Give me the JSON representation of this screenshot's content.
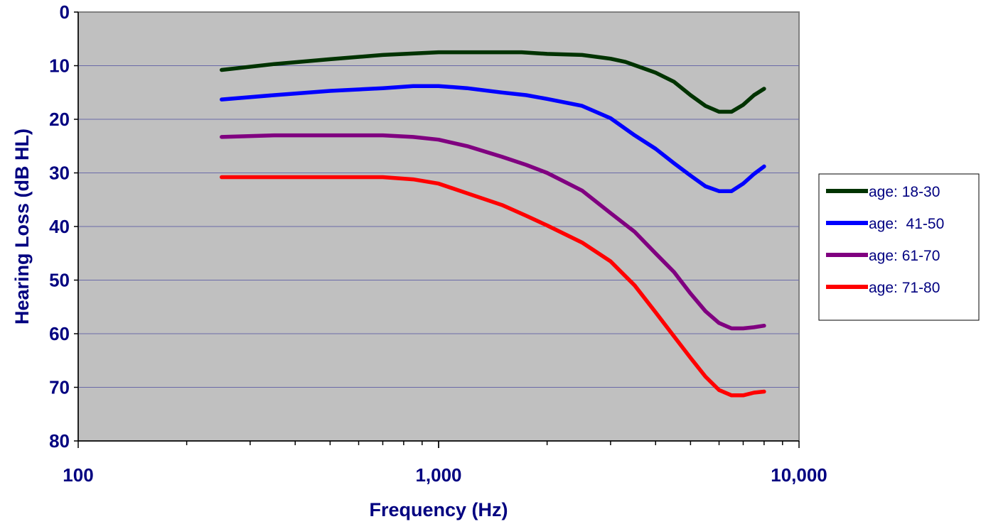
{
  "chart_data": {
    "type": "line",
    "title": "",
    "xlabel": "Frequency (Hz)",
    "ylabel": "Hearing Loss (dB HL)",
    "x_scale": "log",
    "xlim": [
      100,
      10000
    ],
    "ylim": [
      0,
      80
    ],
    "y_inverted": true,
    "y_ticks": [
      "0",
      "10",
      "20",
      "30",
      "40",
      "50",
      "60",
      "70",
      "80"
    ],
    "x_tick_labels": [
      "100",
      "1,000",
      "10,000"
    ],
    "grid": "horizontal",
    "legend_position": "right",
    "plot_background": "#C0C0C0",
    "series": [
      {
        "name": "age: 18-30",
        "color": "#003300",
        "points": [
          [
            250,
            10.8
          ],
          [
            350,
            9.7
          ],
          [
            500,
            8.8
          ],
          [
            700,
            8.0
          ],
          [
            1000,
            7.5
          ],
          [
            1500,
            7.5
          ],
          [
            1700,
            7.5
          ],
          [
            2000,
            7.8
          ],
          [
            2500,
            8.0
          ],
          [
            3000,
            8.7
          ],
          [
            3300,
            9.3
          ],
          [
            4000,
            11.3
          ],
          [
            4500,
            13.0
          ],
          [
            5000,
            15.5
          ],
          [
            5500,
            17.5
          ],
          [
            6000,
            18.6
          ],
          [
            6500,
            18.6
          ],
          [
            7000,
            17.3
          ],
          [
            7500,
            15.5
          ],
          [
            8000,
            14.3
          ]
        ]
      },
      {
        "name": "age:  41-50",
        "color": "#0000FF",
        "points": [
          [
            250,
            16.3
          ],
          [
            350,
            15.5
          ],
          [
            500,
            14.7
          ],
          [
            700,
            14.2
          ],
          [
            850,
            13.8
          ],
          [
            1000,
            13.8
          ],
          [
            1200,
            14.2
          ],
          [
            1500,
            15.0
          ],
          [
            1750,
            15.5
          ],
          [
            2000,
            16.2
          ],
          [
            2500,
            17.5
          ],
          [
            3000,
            19.8
          ],
          [
            3500,
            23.0
          ],
          [
            4000,
            25.5
          ],
          [
            4500,
            28.2
          ],
          [
            5000,
            30.5
          ],
          [
            5500,
            32.5
          ],
          [
            6000,
            33.4
          ],
          [
            6500,
            33.4
          ],
          [
            7000,
            32.0
          ],
          [
            7500,
            30.2
          ],
          [
            8000,
            28.8
          ]
        ]
      },
      {
        "name": "age: 61-70",
        "color": "#800080",
        "points": [
          [
            250,
            23.3
          ],
          [
            350,
            23.0
          ],
          [
            500,
            23.0
          ],
          [
            700,
            23.0
          ],
          [
            850,
            23.3
          ],
          [
            1000,
            23.8
          ],
          [
            1200,
            25.0
          ],
          [
            1500,
            27.0
          ],
          [
            1750,
            28.5
          ],
          [
            2000,
            30.0
          ],
          [
            2500,
            33.3
          ],
          [
            3000,
            37.5
          ],
          [
            3500,
            41.0
          ],
          [
            4000,
            45.0
          ],
          [
            4500,
            48.5
          ],
          [
            5000,
            52.5
          ],
          [
            5500,
            55.8
          ],
          [
            6000,
            58.0
          ],
          [
            6500,
            59.0
          ],
          [
            7000,
            59.0
          ],
          [
            7500,
            58.8
          ],
          [
            8000,
            58.5
          ]
        ]
      },
      {
        "name": "age: 71-80",
        "color": "#FF0000",
        "points": [
          [
            250,
            30.8
          ],
          [
            350,
            30.8
          ],
          [
            500,
            30.8
          ],
          [
            700,
            30.8
          ],
          [
            850,
            31.2
          ],
          [
            1000,
            32.0
          ],
          [
            1200,
            33.8
          ],
          [
            1500,
            36.0
          ],
          [
            1750,
            38.0
          ],
          [
            2000,
            39.8
          ],
          [
            2500,
            43.0
          ],
          [
            3000,
            46.5
          ],
          [
            3500,
            51.0
          ],
          [
            4000,
            56.0
          ],
          [
            4500,
            60.5
          ],
          [
            5000,
            64.5
          ],
          [
            5500,
            68.0
          ],
          [
            6000,
            70.5
          ],
          [
            6500,
            71.5
          ],
          [
            7000,
            71.5
          ],
          [
            7500,
            71.0
          ],
          [
            8000,
            70.8
          ]
        ]
      }
    ]
  }
}
